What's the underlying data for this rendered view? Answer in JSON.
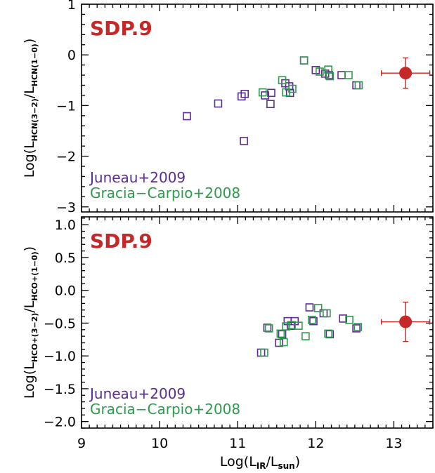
{
  "figure": {
    "xlabel": "Log(L",
    "xlabel_sub_ir": "IR",
    "xlabel_mid": "/L",
    "xlabel_sub_sun": "sun",
    "xlabel_end": ")"
  },
  "chart_data": [
    {
      "type": "scatter",
      "title": "SDP.9",
      "ylabel_parts": [
        "Log(L",
        "HCN(3−2)",
        "/L",
        "HCN(1−0)",
        ")"
      ],
      "xlim": [
        9.0,
        13.5
      ],
      "ylim": [
        -3.1,
        1.0
      ],
      "xticks": [
        9,
        10,
        11,
        12,
        13
      ],
      "xtick_labels": [
        "",
        "",
        "",
        "",
        ""
      ],
      "yticks": [
        -3,
        -2,
        -1,
        0,
        1
      ],
      "ytick_labels": [
        "−3",
        "−2",
        "−1",
        "0",
        "1"
      ],
      "series": [
        {
          "name": "Juneau+2009",
          "color": "#5B2C91",
          "marker": "open-square",
          "x": [
            10.35,
            10.75,
            11.05,
            11.09,
            11.08,
            11.35,
            11.42,
            11.43,
            11.61,
            11.66,
            11.67,
            11.85,
            12.0,
            12.12,
            12.17,
            12.33,
            12.52
          ],
          "y": [
            -1.21,
            -0.96,
            -0.82,
            -0.77,
            -1.7,
            -0.8,
            -0.97,
            -0.75,
            -0.56,
            -0.62,
            -0.75,
            -0.11,
            -0.3,
            -0.37,
            -0.4,
            -0.4,
            -0.6
          ]
        },
        {
          "name": "Gracia−Carpio+2008",
          "color": "#2E9A4E",
          "marker": "open-square",
          "x": [
            11.32,
            11.57,
            11.62,
            11.7,
            11.85,
            12.05,
            12.16,
            12.18,
            12.42,
            12.55
          ],
          "y": [
            -0.74,
            -0.5,
            -0.74,
            -0.67,
            -0.11,
            -0.33,
            -0.29,
            -0.42,
            -0.4,
            -0.6
          ]
        },
        {
          "name": "SDP.9",
          "color": "#C62828",
          "marker": "filled-circle",
          "x": [
            13.15
          ],
          "y": [
            -0.36
          ],
          "xerr": [
            0.31
          ],
          "yerr": [
            0.3
          ]
        }
      ],
      "legend": [
        "Juneau+2009",
        "Gracia−Carpio+2008"
      ],
      "legend_position": "bottom-left"
    },
    {
      "type": "scatter",
      "title": "SDP.9",
      "ylabel_parts": [
        "Log(L",
        "HCO+(3−2)",
        "/L",
        "HCO+(1−0)",
        ")"
      ],
      "xlim": [
        9.0,
        13.5
      ],
      "ylim": [
        -2.1,
        1.12
      ],
      "xticks": [
        9,
        10,
        11,
        12,
        13
      ],
      "xtick_labels": [
        "9",
        "10",
        "11",
        "12",
        "13"
      ],
      "yticks": [
        -2.0,
        -1.5,
        -1.0,
        -0.5,
        0.0,
        0.5,
        1.0
      ],
      "ytick_labels": [
        "−2.0",
        "−1.5",
        "−1.0",
        "−0.5",
        "0.0",
        "0.5",
        "1.0"
      ],
      "series": [
        {
          "name": "Juneau+2009",
          "color": "#5B2C91",
          "marker": "open-square",
          "x": [
            11.3,
            11.38,
            11.53,
            11.57,
            11.64,
            11.68,
            11.73,
            11.92,
            11.97,
            12.1,
            12.18,
            12.35,
            12.52
          ],
          "y": [
            -0.95,
            -0.57,
            -0.8,
            -0.67,
            -0.47,
            -0.54,
            -0.47,
            -0.26,
            -0.47,
            -0.35,
            -0.67,
            -0.43,
            -0.58
          ]
        },
        {
          "name": "Gracia−Carpio+2008",
          "color": "#2E9A4E",
          "marker": "open-square",
          "x": [
            11.34,
            11.4,
            11.55,
            11.59,
            11.62,
            11.69,
            11.78,
            11.87,
            11.95,
            12.03,
            12.14,
            12.16,
            12.43,
            12.54
          ],
          "y": [
            -0.95,
            -0.58,
            -0.66,
            -0.79,
            -0.55,
            -0.53,
            -0.54,
            -0.7,
            -0.45,
            -0.27,
            -0.35,
            -0.66,
            -0.45,
            -0.56
          ]
        },
        {
          "name": "SDP.9",
          "color": "#C62828",
          "marker": "filled-circle",
          "x": [
            13.15
          ],
          "y": [
            -0.48
          ],
          "xerr": [
            0.31
          ],
          "yerr": [
            0.3
          ]
        }
      ],
      "legend": [
        "Juneau+2009",
        "Gracia−Carpio+2008"
      ],
      "legend_position": "bottom-left"
    }
  ]
}
